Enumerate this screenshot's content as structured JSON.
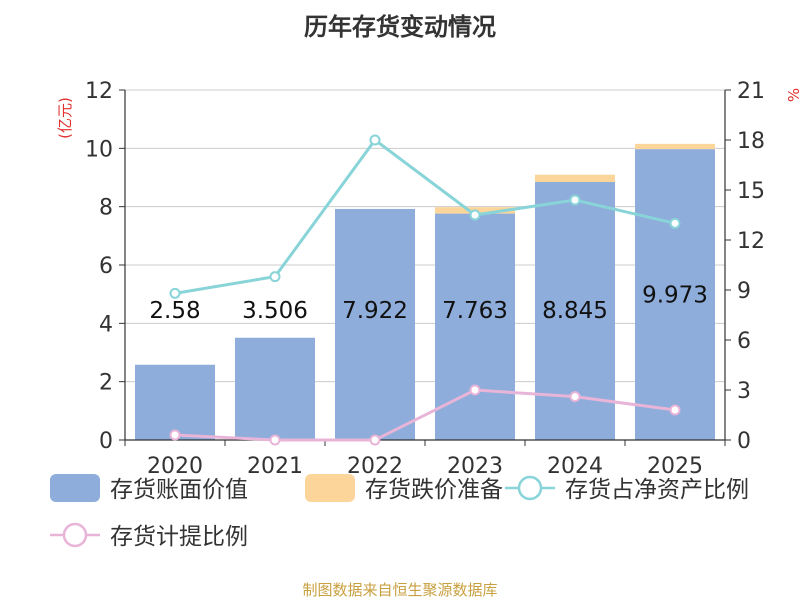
{
  "chart_data": {
    "title": "历年存货变动情况",
    "type": "bar+line",
    "categories": [
      "2020",
      "2021",
      "2022",
      "2023",
      "2024",
      "2025"
    ],
    "y_left": {
      "label": "(亿元)",
      "range": [
        0,
        12
      ],
      "ticks": [
        "0",
        "2",
        "4",
        "6",
        "8",
        "10",
        "12"
      ]
    },
    "y_right": {
      "label": "%",
      "range": [
        0,
        21
      ],
      "ticks": [
        "0",
        "3",
        "6",
        "9",
        "12",
        "15",
        "18",
        "21"
      ]
    },
    "grid": true,
    "series": [
      {
        "name": "存货账面价值",
        "type": "bar",
        "axis": "left",
        "color": "#8eaddb",
        "values": [
          2.58,
          3.506,
          7.922,
          7.763,
          8.845,
          9.973
        ],
        "labels": [
          "2.58",
          "3.506",
          "7.922",
          "7.763",
          "8.845",
          "9.973"
        ]
      },
      {
        "name": "存货跌价准备",
        "type": "bar",
        "stack": true,
        "axis": "left",
        "color": "#fcd59a",
        "values": [
          0,
          0,
          0,
          0.22,
          0.25,
          0.18
        ]
      },
      {
        "name": "存货占净资产比例",
        "type": "line",
        "axis": "right",
        "color": "#88d4d8",
        "values": [
          8.8,
          9.8,
          18.0,
          13.5,
          14.4,
          13.0
        ]
      },
      {
        "name": "存货计提比例",
        "type": "line",
        "axis": "right",
        "color": "#e8b4d8",
        "values": [
          0.3,
          0.0,
          0.0,
          3.0,
          2.6,
          1.8
        ]
      }
    ],
    "legend": "bottom",
    "source_note": "制图数据来自恒生聚源数据库"
  }
}
